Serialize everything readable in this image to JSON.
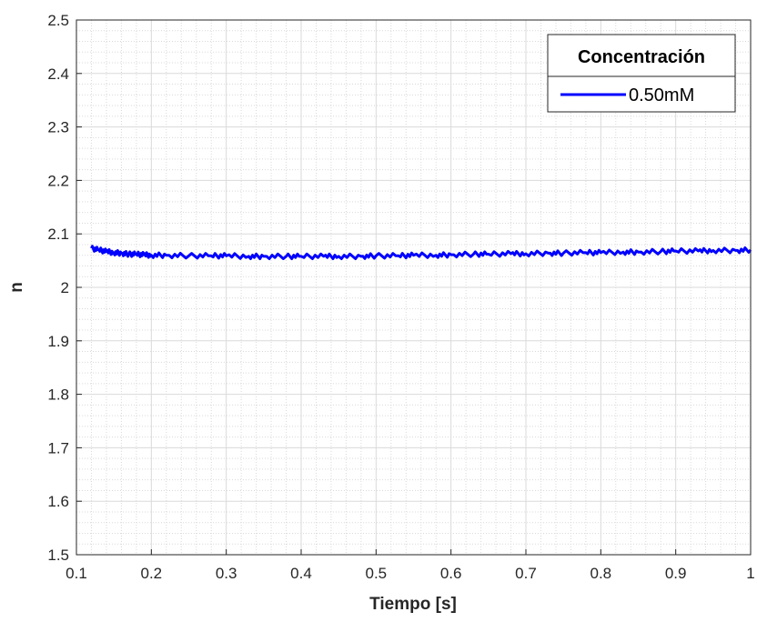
{
  "chart_data": {
    "type": "line",
    "xlabel": "Tiempo [s]",
    "ylabel": "n",
    "xlim": [
      0.1,
      1.0
    ],
    "ylim": [
      1.5,
      2.5
    ],
    "x_ticks": [
      0.1,
      0.2,
      0.3,
      0.4,
      0.5,
      0.6,
      0.7,
      0.8,
      0.9,
      1.0
    ],
    "x_tick_labels": [
      "0.1",
      "0.2",
      "0.3",
      "0.4",
      "0.5",
      "0.6",
      "0.7",
      "0.8",
      "0.9",
      "1"
    ],
    "y_ticks": [
      1.5,
      1.6,
      1.7,
      1.8,
      1.9,
      2.0,
      2.1,
      2.2,
      2.3,
      2.4,
      2.5
    ],
    "y_tick_labels": [
      "1.5",
      "1.6",
      "1.7",
      "1.8",
      "1.9",
      "2",
      "2.1",
      "2.2",
      "2.3",
      "2.4",
      "2.5"
    ],
    "grid": true,
    "minor_grid": true,
    "legend": {
      "title": "Concentración",
      "position": "top-right"
    },
    "series": [
      {
        "name": "0.50mM",
        "color": "#0000ff",
        "x": [
          0.12,
          0.13,
          0.14,
          0.15,
          0.16,
          0.17,
          0.18,
          0.19,
          0.2,
          0.22,
          0.25,
          0.28,
          0.3,
          0.33,
          0.35,
          0.38,
          0.4,
          0.43,
          0.45,
          0.48,
          0.5,
          0.53,
          0.55,
          0.58,
          0.6,
          0.63,
          0.65,
          0.68,
          0.7,
          0.73,
          0.75,
          0.78,
          0.8,
          0.83,
          0.85,
          0.88,
          0.9,
          0.93,
          0.95,
          0.98,
          1.0
        ],
        "y": [
          2.073,
          2.07,
          2.067,
          2.065,
          2.064,
          2.062,
          2.062,
          2.061,
          2.06,
          2.06,
          2.059,
          2.059,
          2.059,
          2.058,
          2.058,
          2.058,
          2.058,
          2.058,
          2.058,
          2.058,
          2.059,
          2.059,
          2.06,
          2.06,
          2.061,
          2.062,
          2.062,
          2.063,
          2.063,
          2.064,
          2.064,
          2.065,
          2.065,
          2.066,
          2.066,
          2.067,
          2.068,
          2.068,
          2.069,
          2.069,
          2.07
        ]
      }
    ]
  }
}
